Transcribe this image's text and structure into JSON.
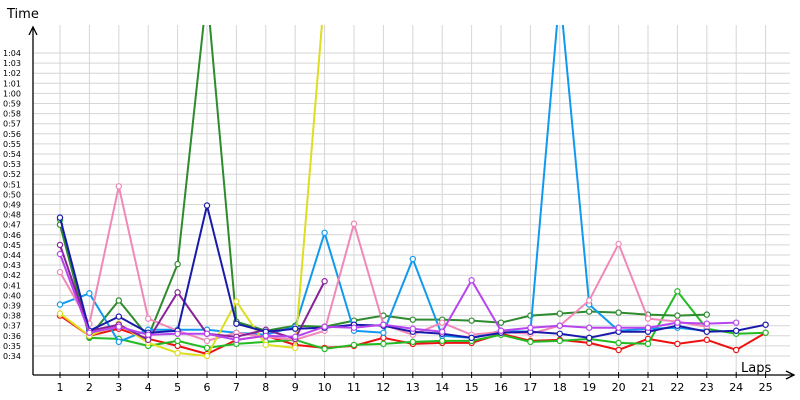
{
  "chart_data": {
    "type": "line",
    "ylabel": "Time",
    "xlabel": "Laps",
    "x": [
      1,
      2,
      3,
      4,
      5,
      6,
      7,
      8,
      9,
      10,
      11,
      12,
      13,
      14,
      15,
      16,
      17,
      18,
      19,
      20,
      21,
      22,
      23,
      24,
      25
    ],
    "yticks": [
      "0:34",
      "0:35",
      "0:36",
      "0:37",
      "0:38",
      "0:39",
      "0:40",
      "0:41",
      "0:42",
      "0:43",
      "0:44",
      "0:45",
      "0:46",
      "0:47",
      "0:48",
      "0:49",
      "0:50",
      "0:51",
      "0:52",
      "0:53",
      "0:54",
      "0:55",
      "0:56",
      "0:57",
      "0:58",
      "0:59",
      "1:00",
      "1:01",
      "1:02",
      "1:03",
      "1:04"
    ],
    "ylim_seconds": [
      33,
      66
    ],
    "grid": true,
    "series": [
      {
        "color": "#ee1111",
        "points": [
          [
            1,
            38
          ],
          [
            2,
            36
          ],
          [
            3,
            36.7
          ],
          [
            4,
            35.7
          ],
          [
            5,
            35
          ],
          [
            6,
            34.2
          ],
          [
            7,
            35.6
          ],
          [
            8,
            36
          ],
          [
            9,
            35.1
          ],
          [
            10,
            34.8
          ],
          [
            11,
            35
          ],
          [
            12,
            35.8
          ],
          [
            13,
            35.2
          ],
          [
            14,
            35.3
          ],
          [
            15,
            35.3
          ],
          [
            16,
            36.2
          ],
          [
            17,
            35.5
          ],
          [
            18,
            35.6
          ],
          [
            19,
            35.3
          ],
          [
            20,
            34.6
          ],
          [
            21,
            35.7
          ],
          [
            22,
            35.2
          ],
          [
            23,
            35.6
          ],
          [
            24,
            34.6
          ],
          [
            25,
            36.3
          ]
        ]
      },
      {
        "color": "#22bb22",
        "points": [
          [
            1,
            47.5
          ],
          [
            2,
            35.8
          ],
          [
            3,
            35.7
          ],
          [
            4,
            35
          ],
          [
            5,
            35.5
          ],
          [
            6,
            34.8
          ],
          [
            7,
            35.2
          ],
          [
            8,
            35.4
          ],
          [
            9,
            35.6
          ],
          [
            10,
            34.7
          ],
          [
            11,
            35.1
          ],
          [
            12,
            35.2
          ],
          [
            13,
            35.4
          ],
          [
            14,
            35.5
          ],
          [
            15,
            35.5
          ],
          [
            16,
            36.1
          ],
          [
            17,
            35.4
          ],
          [
            18,
            35.5
          ],
          [
            19,
            35.7
          ],
          [
            20,
            35.3
          ],
          [
            21,
            35.2
          ],
          [
            22,
            40.4
          ],
          [
            23,
            36.7
          ],
          [
            24,
            36.2
          ],
          [
            25,
            36.3
          ]
        ]
      },
      {
        "color": "#2e8b2e",
        "points": [
          [
            1,
            47
          ],
          [
            2,
            35.9
          ],
          [
            3,
            39.5
          ],
          [
            4,
            35.9
          ],
          [
            5,
            43.1
          ],
          [
            6,
            70
          ],
          [
            7,
            37.4
          ],
          [
            8,
            36.5
          ],
          [
            9,
            37
          ],
          [
            10,
            36.9
          ],
          [
            11,
            37.5
          ],
          [
            12,
            38
          ],
          [
            13,
            37.6
          ],
          [
            14,
            37.6
          ],
          [
            15,
            37.5
          ],
          [
            16,
            37.3
          ],
          [
            17,
            38
          ],
          [
            18,
            38.2
          ],
          [
            19,
            38.4
          ],
          [
            20,
            38.3
          ],
          [
            21,
            38.1
          ],
          [
            22,
            38
          ],
          [
            23,
            38.1
          ]
        ]
      },
      {
        "color": "#1199ee",
        "points": [
          [
            1,
            39.1
          ],
          [
            2,
            40.2
          ],
          [
            3,
            35.4
          ],
          [
            4,
            36.6
          ],
          [
            5,
            36.6
          ],
          [
            6,
            36.6
          ],
          [
            7,
            36.3
          ],
          [
            8,
            36.1
          ],
          [
            9,
            36.9
          ],
          [
            10,
            46.2
          ],
          [
            11,
            36.5
          ],
          [
            12,
            36.3
          ],
          [
            13,
            43.6
          ],
          [
            14,
            36
          ],
          [
            15,
            35.8
          ],
          [
            16,
            36.5
          ],
          [
            17,
            36.4
          ],
          [
            18,
            70
          ],
          [
            19,
            39.1
          ],
          [
            20,
            36.5
          ],
          [
            21,
            36.7
          ],
          [
            22,
            36.8
          ],
          [
            23,
            36.5
          ]
        ]
      },
      {
        "color": "#f088b8",
        "points": [
          [
            1,
            42.3
          ],
          [
            2,
            37.2
          ],
          [
            3,
            50.8
          ],
          [
            4,
            37.7
          ],
          [
            5,
            36.5
          ],
          [
            6,
            35.5
          ],
          [
            7,
            36.3
          ],
          [
            8,
            35.9
          ],
          [
            9,
            35.6
          ],
          [
            10,
            36.5
          ],
          [
            11,
            47.1
          ],
          [
            12,
            37.1
          ],
          [
            13,
            36.1
          ],
          [
            14,
            37.3
          ],
          [
            15,
            36.1
          ],
          [
            16,
            36.4
          ],
          [
            17,
            36.2
          ],
          [
            18,
            37
          ],
          [
            19,
            39.5
          ],
          [
            20,
            45.1
          ],
          [
            21,
            37.7
          ],
          [
            22,
            37.4
          ],
          [
            23,
            36.9
          ]
        ]
      },
      {
        "color": "#dddd22",
        "points": [
          [
            1,
            38.2
          ],
          [
            2,
            36
          ],
          [
            3,
            37.2
          ],
          [
            4,
            35.3
          ],
          [
            5,
            34.3
          ],
          [
            6,
            34
          ],
          [
            7,
            39.4
          ],
          [
            8,
            35.1
          ],
          [
            9,
            34.8
          ],
          [
            10,
            70
          ]
        ]
      },
      {
        "color": "#882299",
        "points": [
          [
            1,
            45
          ],
          [
            2,
            36.5
          ],
          [
            3,
            37.1
          ],
          [
            4,
            35.6
          ],
          [
            5,
            40.3
          ],
          [
            6,
            36.2
          ],
          [
            7,
            35.9
          ],
          [
            8,
            36.6
          ],
          [
            9,
            35.7
          ],
          [
            10,
            41.4
          ]
        ]
      },
      {
        "color": "#1a1aaa",
        "points": [
          [
            1,
            47.7
          ],
          [
            2,
            36.5
          ],
          [
            3,
            37.9
          ],
          [
            4,
            36.3
          ],
          [
            5,
            36.5
          ],
          [
            6,
            48.9
          ],
          [
            7,
            37.2
          ],
          [
            8,
            36.4
          ],
          [
            9,
            36.7
          ],
          [
            10,
            36.8
          ],
          [
            11,
            37.1
          ],
          [
            12,
            37
          ],
          [
            13,
            36.4
          ],
          [
            14,
            36.2
          ],
          [
            15,
            35.8
          ],
          [
            16,
            36.3
          ],
          [
            17,
            36.4
          ],
          [
            18,
            36.2
          ],
          [
            19,
            35.8
          ],
          [
            20,
            36.4
          ],
          [
            21,
            36.4
          ],
          [
            22,
            37
          ],
          [
            23,
            36.4
          ],
          [
            24,
            36.5
          ],
          [
            25,
            37.1
          ]
        ]
      },
      {
        "color": "#b844ee",
        "points": [
          [
            1,
            44.1
          ],
          [
            2,
            36.3
          ],
          [
            3,
            36.9
          ],
          [
            4,
            36.1
          ],
          [
            5,
            36.2
          ],
          [
            6,
            36.2
          ],
          [
            7,
            35.6
          ],
          [
            8,
            36
          ],
          [
            9,
            35.9
          ],
          [
            10,
            36.9
          ],
          [
            11,
            36.8
          ],
          [
            12,
            37.1
          ],
          [
            13,
            36.7
          ],
          [
            14,
            36.4
          ],
          [
            15,
            41.5
          ],
          [
            16,
            36.5
          ],
          [
            17,
            36.8
          ],
          [
            18,
            37
          ],
          [
            19,
            36.8
          ],
          [
            20,
            36.8
          ],
          [
            21,
            36.8
          ],
          [
            22,
            37.3
          ],
          [
            23,
            37.2
          ],
          [
            24,
            37.3
          ]
        ]
      }
    ]
  }
}
